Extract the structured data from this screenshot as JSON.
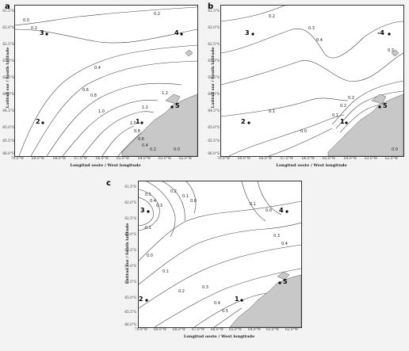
{
  "lat_ticks": [
    "61.5°S",
    "62.0°S",
    "62.5°S",
    "63.0°S",
    "63.5°S",
    "64.0°S",
    "64.5°S",
    "65.0°S",
    "65.5°S",
    "66.0°S"
  ],
  "lon_ticks": [
    "70.0°W",
    "69.0°W",
    "68.0°W",
    "67.0°W",
    "66.0°W",
    "65.0°W",
    "64.0°W",
    "63.0°W",
    "62.0°W"
  ],
  "x_axis_label": "Longitud oeste / West longitude",
  "y_axis_label": "Latitud sur / South latitude",
  "colors": {
    "land": "#c8c8c8",
    "contour": "#444444",
    "frame": "#333333"
  },
  "panels": [
    {
      "letter": "a",
      "stations": [
        {
          "id": "1",
          "label": "1"
        },
        {
          "id": "2",
          "label": "2"
        },
        {
          "id": "3",
          "label": "3"
        },
        {
          "id": "4",
          "label": "4"
        },
        {
          "id": "5",
          "label": "5"
        }
      ],
      "contour_labels": [
        "0.2",
        "0.0",
        "0.2",
        "0.4",
        "0.6",
        "0.8",
        "1.0",
        "1.2",
        "1.2",
        "1.0",
        "0.8",
        "0.6",
        "0.4",
        "0.2",
        "0.0"
      ]
    },
    {
      "letter": "b",
      "stations": [
        {
          "id": "1",
          "label": "1"
        },
        {
          "id": "2",
          "label": "2"
        },
        {
          "id": "3",
          "label": "3"
        },
        {
          "id": "4",
          "label": "-4"
        },
        {
          "id": "5",
          "label": "5"
        }
      ],
      "contour_labels": [
        "0.2",
        "0.3",
        "0.4",
        "0.3",
        "0.1",
        "0.0",
        "0.1",
        "0.2",
        "0.3",
        "0.0"
      ]
    },
    {
      "letter": "c",
      "stations": [
        {
          "id": "1",
          "label": "1"
        },
        {
          "id": "2",
          "label": "2"
        },
        {
          "id": "3",
          "label": "3"
        },
        {
          "id": "4",
          "label": "4"
        },
        {
          "id": "5",
          "label": "5"
        }
      ],
      "contour_labels": [
        "0.5",
        "0.4",
        "0.3",
        "0.2",
        "0.1",
        "0.0",
        "-0.1",
        "0.0",
        "0.1",
        "0.2",
        "0.3",
        "0.4",
        "0.5",
        "0.1",
        "0.0",
        "0.3",
        "0.4"
      ]
    }
  ]
}
